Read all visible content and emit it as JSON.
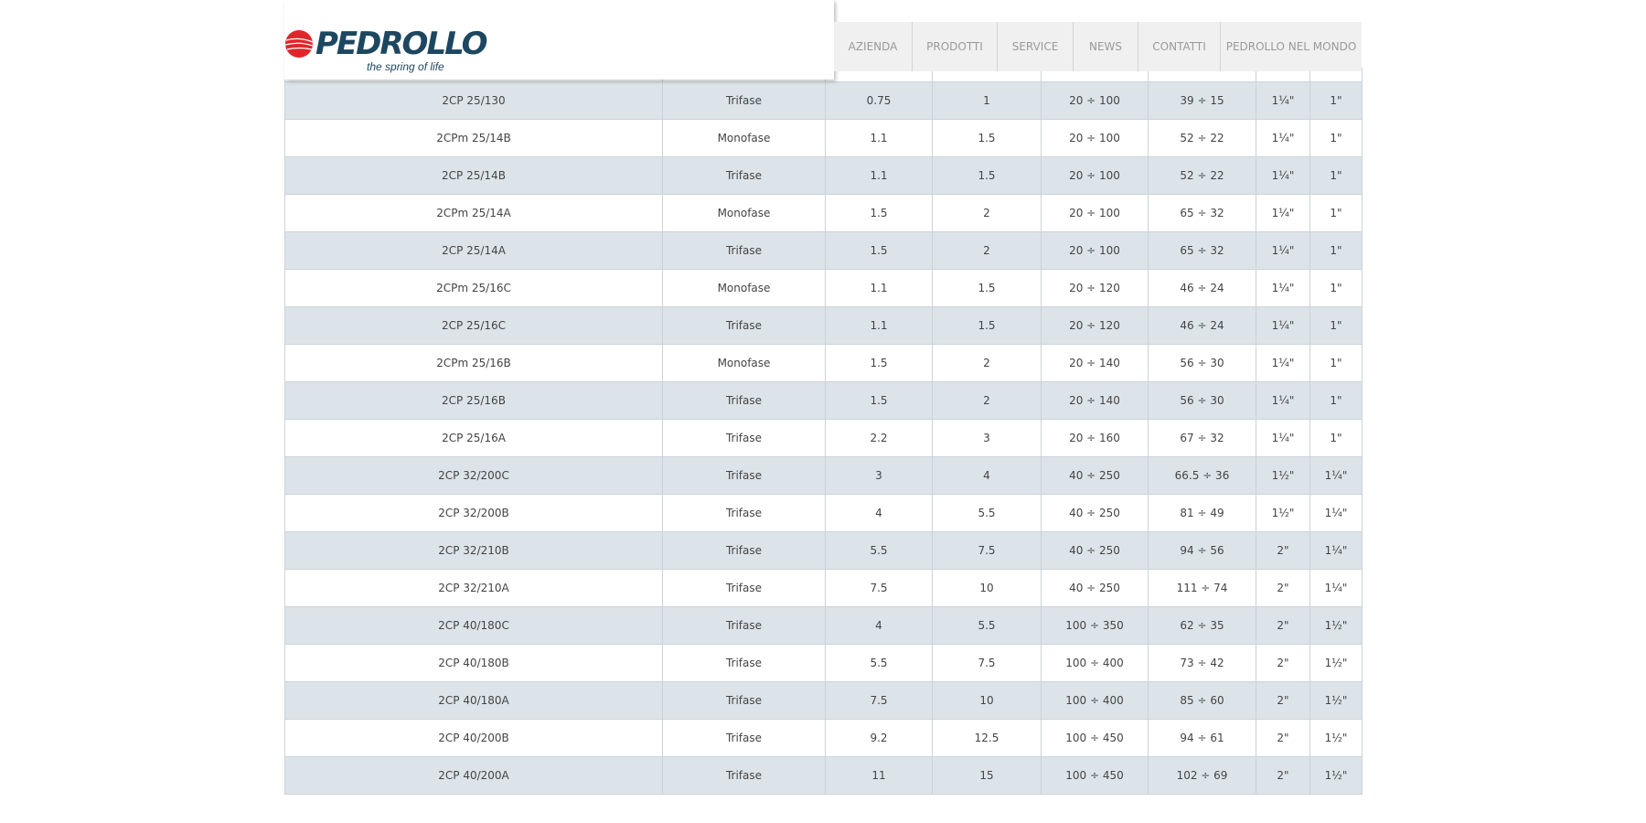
{
  "brand": {
    "name": "PEDROLLO",
    "tagline": "the spring of life",
    "red": "#e0262b",
    "blue": "#1d4760"
  },
  "nav": [
    "AZIENDA",
    "PRODOTTI",
    "SERVICE",
    "NEWS",
    "CONTATTI",
    "PEDROLLO NEL MONDO"
  ],
  "rows": [
    [
      "2CP 25/130",
      "Trifase",
      "0.75",
      "1",
      "20 ÷ 100",
      "39 ÷ 15",
      "1¼\"",
      "1\""
    ],
    [
      "2CPm 25/14B",
      "Monofase",
      "1.1",
      "1.5",
      "20 ÷ 100",
      "52 ÷ 22",
      "1¼\"",
      "1\""
    ],
    [
      "2CP 25/14B",
      "Trifase",
      "1.1",
      "1.5",
      "20 ÷ 100",
      "52 ÷ 22",
      "1¼\"",
      "1\""
    ],
    [
      "2CPm 25/14A",
      "Monofase",
      "1.5",
      "2",
      "20 ÷ 100",
      "65 ÷ 32",
      "1¼\"",
      "1\""
    ],
    [
      "2CP 25/14A",
      "Trifase",
      "1.5",
      "2",
      "20 ÷ 100",
      "65 ÷ 32",
      "1¼\"",
      "1\""
    ],
    [
      "2CPm 25/16C",
      "Monofase",
      "1.1",
      "1.5",
      "20 ÷ 120",
      "46 ÷ 24",
      "1¼\"",
      "1\""
    ],
    [
      "2CP 25/16C",
      "Trifase",
      "1.1",
      "1.5",
      "20 ÷ 120",
      "46 ÷ 24",
      "1¼\"",
      "1\""
    ],
    [
      "2CPm 25/16B",
      "Monofase",
      "1.5",
      "2",
      "20 ÷ 140",
      "56 ÷ 30",
      "1¼\"",
      "1\""
    ],
    [
      "2CP 25/16B",
      "Trifase",
      "1.5",
      "2",
      "20 ÷ 140",
      "56 ÷ 30",
      "1¼\"",
      "1\""
    ],
    [
      "2CP 25/16A",
      "Trifase",
      "2.2",
      "3",
      "20 ÷ 160",
      "67 ÷ 32",
      "1¼\"",
      "1\""
    ],
    [
      "2CP 32/200C",
      "Trifase",
      "3",
      "4",
      "40 ÷ 250",
      "66.5 ÷ 36",
      "1½\"",
      "1¼\""
    ],
    [
      "2CP 32/200B",
      "Trifase",
      "4",
      "5.5",
      "40 ÷ 250",
      "81 ÷ 49",
      "1½\"",
      "1¼\""
    ],
    [
      "2CP 32/210B",
      "Trifase",
      "5.5",
      "7.5",
      "40 ÷ 250",
      "94 ÷ 56",
      "2\"",
      "1¼\""
    ],
    [
      "2CP 32/210A",
      "Trifase",
      "7.5",
      "10",
      "40 ÷ 250",
      "111 ÷ 74",
      "2\"",
      "1¼\""
    ],
    [
      "2CP 40/180C",
      "Trifase",
      "4",
      "5.5",
      "100 ÷ 350",
      "62 ÷ 35",
      "2\"",
      "1½\""
    ],
    [
      "2CP 40/180B",
      "Trifase",
      "5.5",
      "7.5",
      "100 ÷ 400",
      "73 ÷ 42",
      "2\"",
      "1½\""
    ],
    [
      "2CP 40/180A",
      "Trifase",
      "7.5",
      "10",
      "100 ÷ 400",
      "85 ÷ 60",
      "2\"",
      "1½\""
    ],
    [
      "2CP 40/200B",
      "Trifase",
      "9.2",
      "12.5",
      "100 ÷ 450",
      "94 ÷ 61",
      "2\"",
      "1½\""
    ],
    [
      "2CP 40/200A",
      "Trifase",
      "11",
      "15",
      "100 ÷ 450",
      "102 ÷ 69",
      "2\"",
      "1½\""
    ]
  ]
}
